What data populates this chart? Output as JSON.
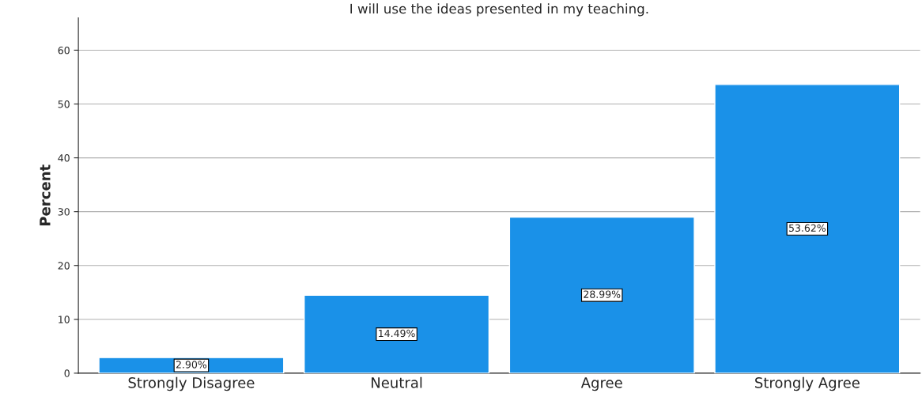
{
  "chart_data": {
    "type": "bar",
    "title": "I will use the ideas presented in my teaching.",
    "ylabel": "Percent",
    "categories": [
      "Strongly Disagree",
      "Neutral",
      "Agree",
      "Strongly Agree"
    ],
    "values": [
      2.9,
      14.49,
      28.99,
      53.62
    ],
    "value_labels": [
      "2.90%",
      "14.49%",
      "28.99%",
      "53.62%"
    ],
    "color": "#1a91e8",
    "ylim": [
      0,
      66
    ],
    "yticks": [
      0,
      10,
      20,
      30,
      40,
      50,
      60
    ],
    "grid": "y"
  }
}
